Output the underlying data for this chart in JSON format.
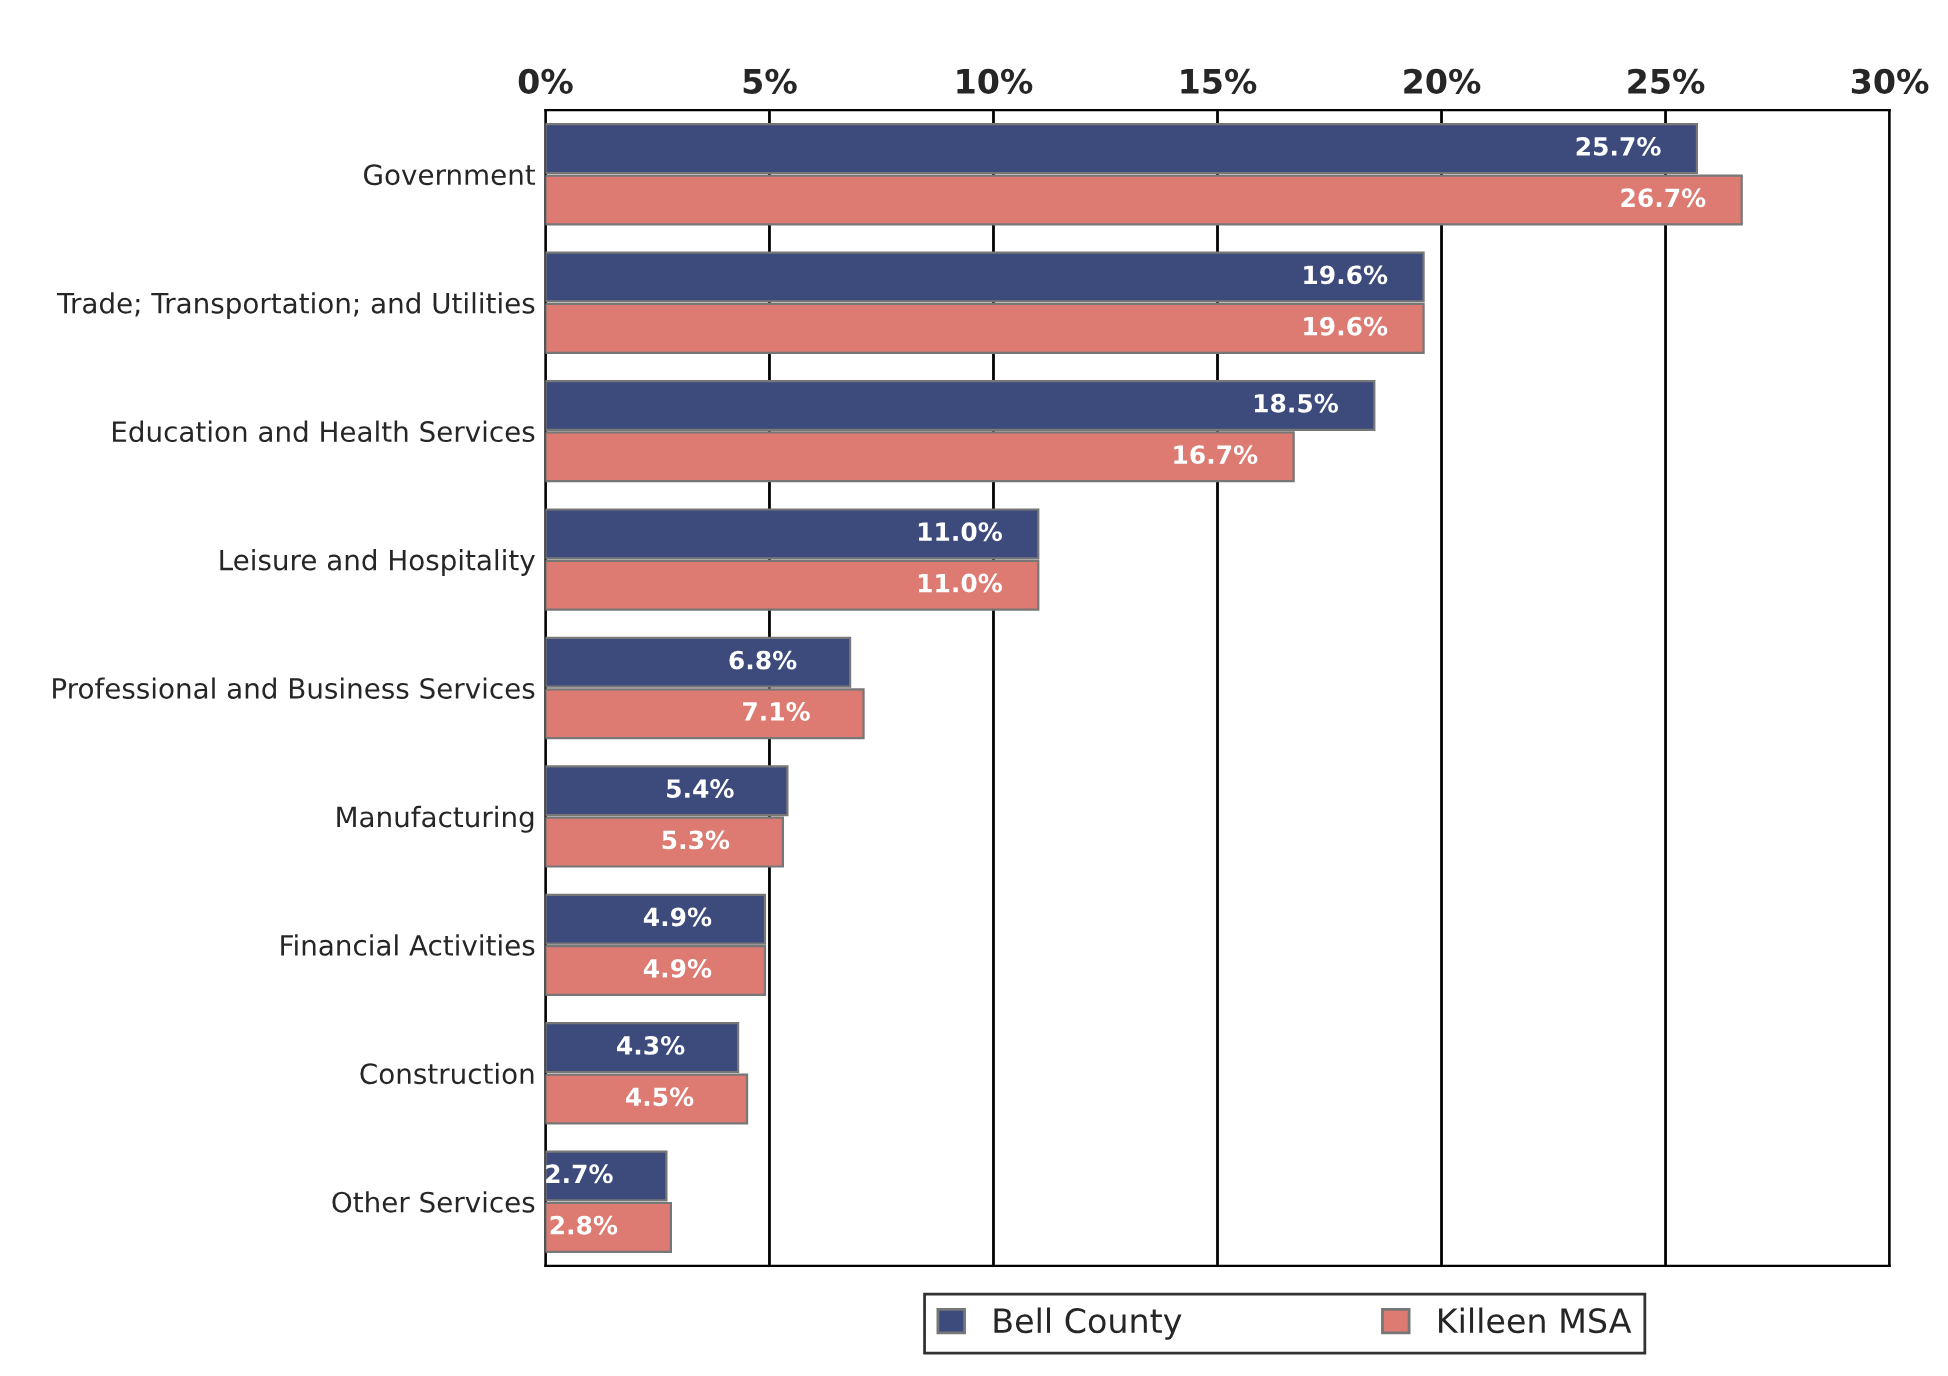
{
  "chart_data": {
    "type": "bar",
    "orientation": "horizontal",
    "categories": [
      "Government",
      "Trade; Transportation; and Utilities",
      "Education and Health Services",
      "Leisure and Hospitality",
      "Professional and Business Services",
      "Manufacturing",
      "Financial Activities",
      "Construction",
      "Other Services"
    ],
    "series": [
      {
        "name": "Bell County",
        "color": "#3c4a7c",
        "values": [
          25.7,
          19.6,
          18.5,
          11.0,
          6.8,
          5.4,
          4.9,
          4.3,
          2.7
        ],
        "value_labels": [
          "25.7%",
          "19.6%",
          "18.5%",
          "11.0%",
          "6.8%",
          "5.4%",
          "4.9%",
          "4.3%",
          "2.7%"
        ]
      },
      {
        "name": "Killeen MSA",
        "color": "#dd7a72",
        "values": [
          26.7,
          19.6,
          16.7,
          11.0,
          7.1,
          5.3,
          4.9,
          4.5,
          2.8
        ],
        "value_labels": [
          "26.7%",
          "19.6%",
          "16.7%",
          "11.0%",
          "7.1%",
          "5.3%",
          "4.9%",
          "4.5%",
          "2.8%"
        ]
      }
    ],
    "xlim": [
      0,
      30
    ],
    "xticks": [
      {
        "value": 0,
        "label": "0%"
      },
      {
        "value": 5,
        "label": "5%"
      },
      {
        "value": 10,
        "label": "10%"
      },
      {
        "value": 15,
        "label": "15%"
      },
      {
        "value": 20,
        "label": "20%"
      },
      {
        "value": 25,
        "label": "25%"
      },
      {
        "value": 30,
        "label": "30%"
      }
    ],
    "grid": "x",
    "legend": "bottom"
  }
}
